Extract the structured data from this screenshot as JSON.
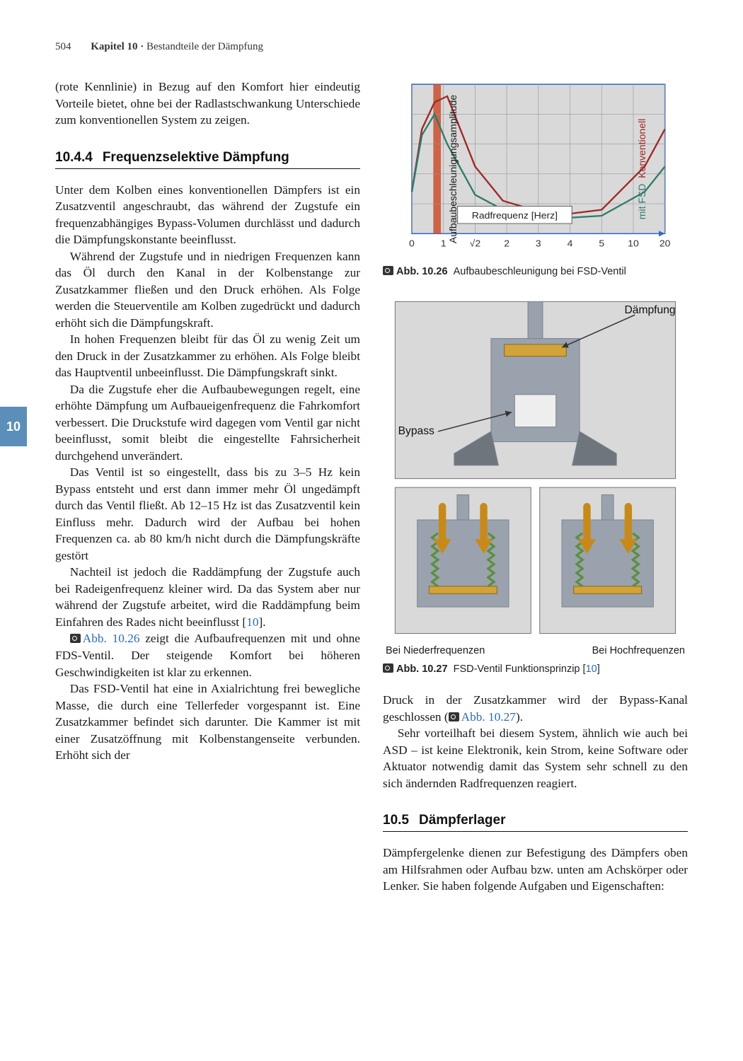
{
  "header": {
    "page_number": "504",
    "chapter_label": "Kapitel 10 ·",
    "chapter_title": "Bestandteile der Dämpfung"
  },
  "side_tab": "10",
  "left_column": {
    "para1": "(rote Kennlinie) in Bezug auf den Komfort hier eindeutig Vorteile bietet, ohne bei der Radlastschwankung Unterschiede zum konventionellen System zu zeigen.",
    "heading1_num": "10.4.4",
    "heading1_text": "Frequenzselektive Dämpfung",
    "para2": "Unter dem Kolben eines konventionellen Dämpfers ist ein Zusatzventil angeschraubt, das während der Zugstufe ein frequenzabhängiges Bypass-Volumen durchlässt und dadurch die Dämpfungskonstante beeinflusst.",
    "para3": "Während der Zugstufe und in niedrigen Frequenzen kann das Öl durch den Kanal in der Kolbenstange zur Zusatzkammer fließen und den Druck erhöhen. Als Folge werden die Steuerventile am Kolben zugedrückt und dadurch erhöht sich die Dämpfungskraft.",
    "para4": "In hohen Frequenzen bleibt für das Öl zu wenig Zeit um den Druck in der Zusatzkammer zu erhöhen. Als Folge bleibt das Hauptventil unbeeinflusst. Die Dämpfungskraft sinkt.",
    "para5": "Da die Zugstufe eher die Aufbaubewegungen regelt, eine erhöhte Dämpfung um Aufbaueigenfrequenz die Fahrkomfort verbessert. Die Druckstufe wird dagegen vom Ventil gar nicht beeinflusst, somit bleibt die eingestellte Fahrsicherheit durchgehend unverändert.",
    "para6": "Das Ventil ist so eingestellt, dass bis zu 3–5 Hz kein Bypass entsteht und erst dann immer mehr Öl ungedämpft durch das Ventil fließt. Ab 12–15 Hz ist das Zusatzventil kein Einfluss mehr. Dadurch wird der Aufbau bei hohen Frequenzen ca. ab 80 km/h nicht durch die Dämpfungskräfte gestört",
    "para7_a": "Nachteil ist jedoch die Raddämpfung der Zugstufe auch bei Radeigenfrequenz kleiner wird. Da das System aber nur während der Zugstufe arbeitet, wird die Raddämpfung beim Einfahren des Rades nicht beeinflusst [",
    "para7_cite": "10",
    "para7_b": "].",
    "para8_ref": "Abb. 10.26",
    "para8_rest": " zeigt die Aufbaufrequenzen mit und ohne FDS-Ventil. Der steigende Komfort bei höheren Geschwindigkeiten ist klar zu erkennen.",
    "para9": "Das FSD-Ventil hat eine in Axialrichtung frei bewegliche Masse, die durch eine Tellerfeder vorgespannt ist. Eine Zusatzkammer befindet sich darunter. Die Kammer ist mit einer Zusatzöffnung mit Kolbenstangenseite verbunden. Erhöht sich der"
  },
  "right_column": {
    "chart": {
      "type": "line",
      "ylabel": "Aufbaubeschleunigungsamplitude",
      "rlabel_a": "mit FSD",
      "rlabel_b": "Konventionell",
      "xlabel_inset": "Radfrequenz [Herz]",
      "x_ticks": [
        "0",
        "1",
        "√2",
        "2",
        "3",
        "4",
        "5",
        "10",
        "20"
      ],
      "background_color": "#d9d9d9",
      "grid_color": "#999999",
      "axis_color": "#3366cc",
      "series": [
        {
          "name": "Konventionell",
          "color": "#a02828",
          "points": [
            [
              0,
              0.72
            ],
            [
              0.04,
              0.3
            ],
            [
              0.09,
              0.12
            ],
            [
              0.14,
              0.08
            ],
            [
              0.25,
              0.55
            ],
            [
              0.36,
              0.78
            ],
            [
              0.56,
              0.88
            ],
            [
              0.75,
              0.84
            ],
            [
              0.92,
              0.55
            ],
            [
              1.0,
              0.3
            ]
          ]
        },
        {
          "name": "mit FSD",
          "color": "#2e7a6b",
          "points": [
            [
              0,
              0.72
            ],
            [
              0.04,
              0.34
            ],
            [
              0.09,
              0.2
            ],
            [
              0.14,
              0.4
            ],
            [
              0.25,
              0.74
            ],
            [
              0.36,
              0.84
            ],
            [
              0.56,
              0.9
            ],
            [
              0.75,
              0.88
            ],
            [
              0.92,
              0.72
            ],
            [
              1.0,
              0.55
            ]
          ]
        }
      ],
      "resonance_band_x": [
        0.085,
        0.115
      ],
      "resonance_band_color": "#c94f2e"
    },
    "fig1_label": "Abb. 10.26",
    "fig1_caption": "Aufbaubeschleunigung bei FSD-Ventil",
    "mech": {
      "bg_color": "#d9d9d9",
      "metal_color": "#9aa2ae",
      "metal_dark": "#7d8591",
      "housing_color": "#6f757d",
      "valve_color": "#d2a338",
      "spring_color": "#5a8f3a",
      "arrow_color": "#c78a1a",
      "line_color": "#333333",
      "label_top_right": "Dämpfung",
      "label_left": "Bypass",
      "sub_left": "Bei Niederfrequenzen",
      "sub_right": "Bei Hochfrequenzen"
    },
    "fig2_label": "Abb. 10.27",
    "fig2_caption_a": "FSD-Ventil Funktionsprinzip [",
    "fig2_cite": "10",
    "fig2_caption_b": "]",
    "para1_a": "Druck in der Zusatzkammer wird der Bypass-Kanal geschlossen (",
    "para1_ref": "Abb. 10.27",
    "para1_b": ").",
    "para2": "Sehr vorteilhaft bei diesem System, ähnlich wie auch bei ASD – ist keine Elektronik, kein Strom, keine Software oder Aktuator notwendig damit das System sehr schnell zu den sich ändernden Radfrequenzen reagiert.",
    "heading2_num": "10.5",
    "heading2_text": "Dämpferlager",
    "para3": "Dämpfergelenke dienen zur Befestigung des Dämpfers oben am Hilfsrahmen oder Aufbau bzw. unten am Achskörper oder Lenker. Sie haben folgende Aufgaben und Eigenschaften:"
  }
}
